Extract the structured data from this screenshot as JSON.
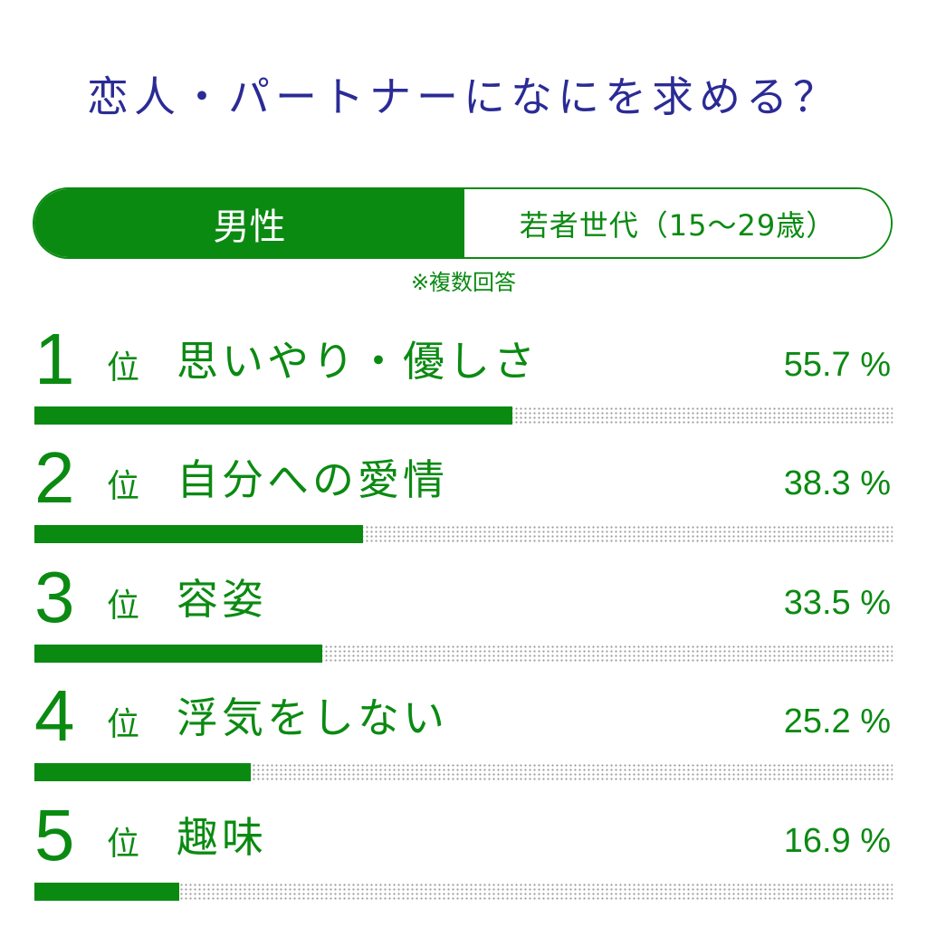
{
  "title": "恋人・パートナーになにを求める？",
  "filter": {
    "left_label": "男性",
    "right_label": "若者世代（15〜29歳）"
  },
  "note": "※複数回答",
  "colors": {
    "accent": "#0b8a12",
    "title": "#2b2b96"
  },
  "chart_data": {
    "type": "bar",
    "orientation": "horizontal",
    "title": "恋人・パートナーになにを求める？",
    "rank_suffix": "位",
    "unit": "%",
    "xlim": [
      0,
      100
    ],
    "categories": [
      "思いやり・優しさ",
      "自分への愛情",
      "容姿",
      "浮気をしない",
      "趣味"
    ],
    "ranks": [
      "1",
      "2",
      "3",
      "4",
      "5"
    ],
    "values": [
      55.7,
      38.3,
      33.5,
      25.2,
      16.9
    ],
    "value_labels": [
      "55.7 %",
      "38.3 %",
      "33.5 %",
      "25.2 %",
      "16.9 %"
    ]
  }
}
